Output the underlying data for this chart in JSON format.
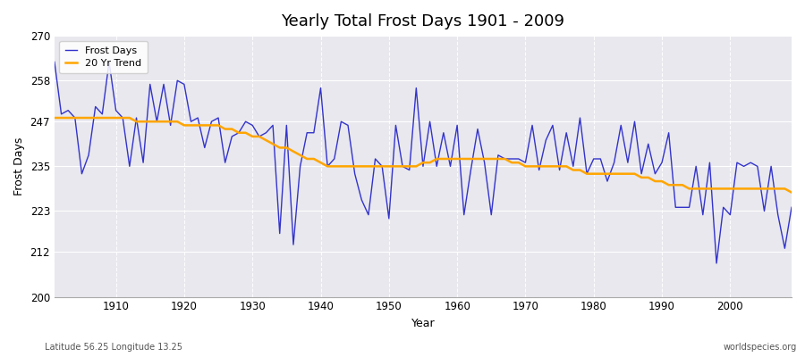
{
  "title": "Yearly Total Frost Days 1901 - 2009",
  "xlabel": "Year",
  "ylabel": "Frost Days",
  "footnote_left": "Latitude 56.25 Longitude 13.25",
  "footnote_right": "worldspecies.org",
  "legend_labels": [
    "Frost Days",
    "20 Yr Trend"
  ],
  "line_color": "#3333cc",
  "trend_color": "#ffa500",
  "bg_color": "#e8e8ee",
  "fig_color": "#ffffff",
  "ylim": [
    200,
    270
  ],
  "yticks": [
    200,
    212,
    223,
    235,
    247,
    258,
    270
  ],
  "xlim": [
    1901,
    2009
  ],
  "xticks": [
    1910,
    1920,
    1930,
    1940,
    1950,
    1960,
    1970,
    1980,
    1990,
    2000
  ],
  "years": [
    1901,
    1902,
    1903,
    1904,
    1905,
    1906,
    1907,
    1908,
    1909,
    1910,
    1911,
    1912,
    1913,
    1914,
    1915,
    1916,
    1917,
    1918,
    1919,
    1920,
    1921,
    1922,
    1923,
    1924,
    1925,
    1926,
    1927,
    1928,
    1929,
    1930,
    1931,
    1932,
    1933,
    1934,
    1935,
    1936,
    1937,
    1938,
    1939,
    1940,
    1941,
    1942,
    1943,
    1944,
    1945,
    1946,
    1947,
    1948,
    1949,
    1950,
    1951,
    1952,
    1953,
    1954,
    1955,
    1956,
    1957,
    1958,
    1959,
    1960,
    1961,
    1962,
    1963,
    1964,
    1965,
    1966,
    1967,
    1968,
    1969,
    1970,
    1971,
    1972,
    1973,
    1974,
    1975,
    1976,
    1977,
    1978,
    1979,
    1980,
    1981,
    1982,
    1983,
    1984,
    1985,
    1986,
    1987,
    1988,
    1989,
    1990,
    1991,
    1992,
    1993,
    1994,
    1995,
    1996,
    1997,
    1998,
    1999,
    2000,
    2001,
    2002,
    2003,
    2004,
    2005,
    2006,
    2007,
    2008,
    2009
  ],
  "frost_days": [
    263,
    249,
    250,
    248,
    233,
    238,
    251,
    249,
    263,
    250,
    248,
    235,
    248,
    236,
    257,
    247,
    257,
    246,
    258,
    257,
    247,
    248,
    240,
    247,
    248,
    236,
    243,
    244,
    247,
    246,
    243,
    244,
    246,
    217,
    246,
    214,
    235,
    244,
    244,
    256,
    235,
    237,
    247,
    246,
    233,
    226,
    222,
    237,
    235,
    221,
    246,
    235,
    234,
    256,
    235,
    247,
    235,
    244,
    235,
    246,
    222,
    234,
    245,
    236,
    222,
    238,
    237,
    237,
    237,
    236,
    246,
    234,
    242,
    246,
    234,
    244,
    235,
    248,
    233,
    237,
    237,
    231,
    236,
    246,
    236,
    247,
    233,
    241,
    233,
    236,
    244,
    224,
    224,
    224,
    235,
    222,
    236,
    209,
    224,
    222,
    236,
    235,
    236,
    235,
    223,
    235,
    222,
    213,
    224
  ],
  "trend": [
    248,
    248,
    248,
    248,
    248,
    248,
    248,
    248,
    248,
    248,
    248,
    248,
    247,
    247,
    247,
    247,
    247,
    247,
    247,
    246,
    246,
    246,
    246,
    246,
    246,
    245,
    245,
    244,
    244,
    243,
    243,
    242,
    241,
    240,
    240,
    239,
    238,
    237,
    237,
    236,
    235,
    235,
    235,
    235,
    235,
    235,
    235,
    235,
    235,
    235,
    235,
    235,
    235,
    235,
    236,
    236,
    237,
    237,
    237,
    237,
    237,
    237,
    237,
    237,
    237,
    237,
    237,
    236,
    236,
    235,
    235,
    235,
    235,
    235,
    235,
    235,
    234,
    234,
    233,
    233,
    233,
    233,
    233,
    233,
    233,
    233,
    232,
    232,
    231,
    231,
    230,
    230,
    230,
    229,
    229,
    229,
    229,
    229,
    229,
    229,
    229,
    229,
    229,
    229,
    229,
    229,
    229,
    229,
    228
  ]
}
